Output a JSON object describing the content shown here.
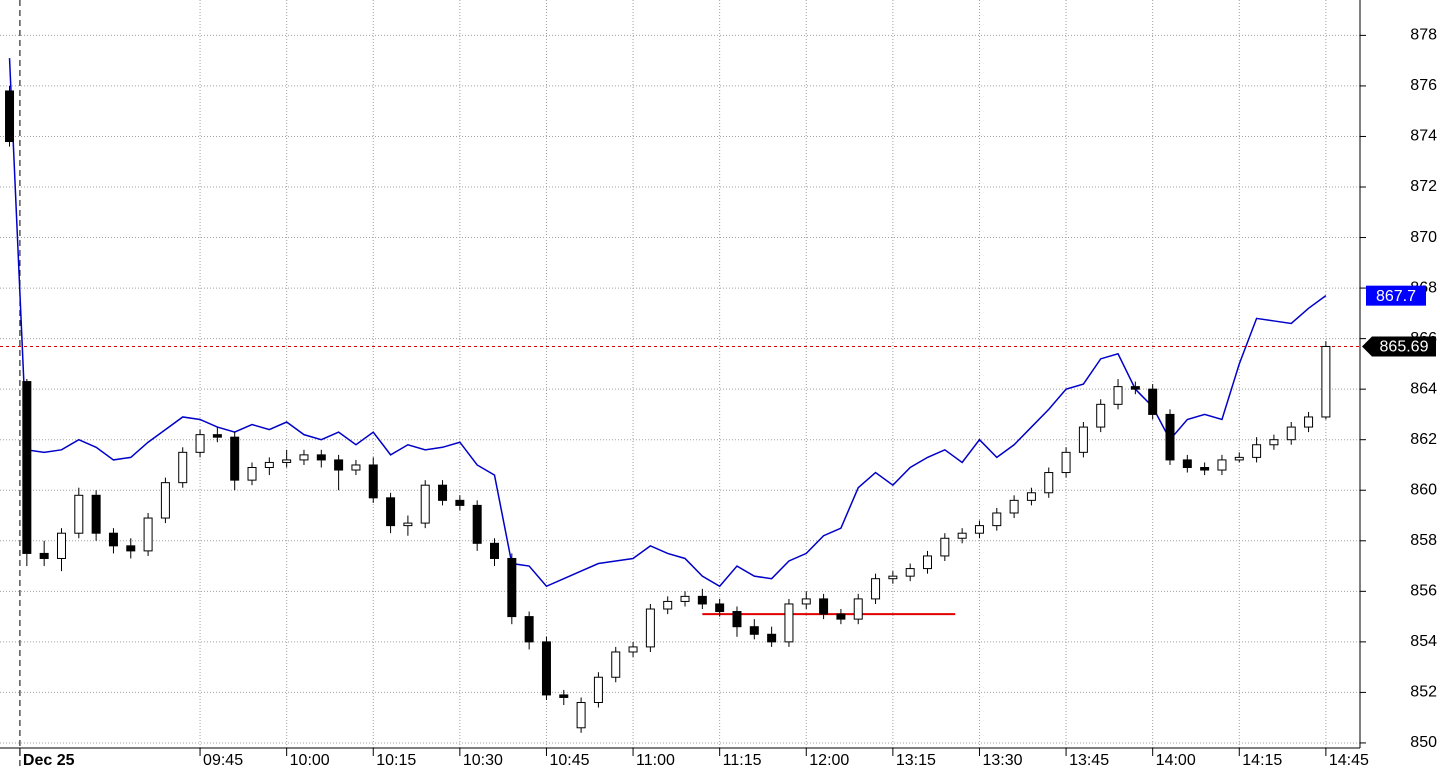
{
  "chart_data": {
    "type": "candlestick",
    "x": [
      -1,
      0,
      1,
      2,
      3,
      4,
      5,
      6,
      7,
      8,
      9,
      10,
      11,
      12,
      13,
      14,
      15,
      16,
      17,
      18,
      19,
      20,
      21,
      22,
      23,
      24,
      25,
      26,
      27,
      28,
      29,
      30,
      31,
      32,
      33,
      34,
      35,
      36,
      37,
      38,
      39,
      40,
      41,
      42,
      43,
      44,
      45,
      46,
      47,
      48,
      49,
      50,
      51,
      52,
      53,
      54,
      55,
      56,
      57,
      58,
      59,
      60,
      61,
      62,
      63,
      64,
      65,
      66,
      67,
      68,
      69,
      70,
      71,
      72,
      73,
      74,
      75
    ],
    "open": [
      875.8,
      864.3,
      857.5,
      857.3,
      858.3,
      859.8,
      858.3,
      857.8,
      857.6,
      858.9,
      860.3,
      861.5,
      862.2,
      862.1,
      860.4,
      860.9,
      861.1,
      861.2,
      861.4,
      861.2,
      860.8,
      861.0,
      859.7,
      858.6,
      858.7,
      860.2,
      859.6,
      859.4,
      857.9,
      857.3,
      855.0,
      854.0,
      851.9,
      850.6,
      851.6,
      852.6,
      853.6,
      853.8,
      855.3,
      855.6,
      855.8,
      855.5,
      855.2,
      854.6,
      854.3,
      854.0,
      855.5,
      855.7,
      855.1,
      854.9,
      855.7,
      856.5,
      856.6,
      856.9,
      857.4,
      858.1,
      858.3,
      858.6,
      859.1,
      859.6,
      859.9,
      860.7,
      861.5,
      862.5,
      863.4,
      864.1,
      864.0,
      863.0,
      861.2,
      860.9,
      860.8,
      861.2,
      861.3,
      861.8,
      862.0,
      862.5,
      862.9
    ],
    "high": [
      876.0,
      864.4,
      858.0,
      858.5,
      860.1,
      860.0,
      858.5,
      858.1,
      859.1,
      860.5,
      861.7,
      862.4,
      862.5,
      862.3,
      861.1,
      861.3,
      861.6,
      861.6,
      861.6,
      861.4,
      861.2,
      861.3,
      859.9,
      859.0,
      860.4,
      860.4,
      859.8,
      859.6,
      858.1,
      857.5,
      855.2,
      854.2,
      852.1,
      851.8,
      852.8,
      853.8,
      854.0,
      855.5,
      855.8,
      856.0,
      856.1,
      855.7,
      855.4,
      854.9,
      854.6,
      855.7,
      856.0,
      855.9,
      855.3,
      855.9,
      856.7,
      856.8,
      857.1,
      857.6,
      858.3,
      858.5,
      858.8,
      859.3,
      859.8,
      860.1,
      860.9,
      861.7,
      862.7,
      863.6,
      864.4,
      864.3,
      864.2,
      863.2,
      861.4,
      861.1,
      861.4,
      861.5,
      862.1,
      862.2,
      862.7,
      863.1,
      865.9
    ],
    "low": [
      873.6,
      857.0,
      857.0,
      856.8,
      858.1,
      858.0,
      857.5,
      857.3,
      857.4,
      858.7,
      860.1,
      861.3,
      861.9,
      860.0,
      860.2,
      860.6,
      860.9,
      861.0,
      860.9,
      860.0,
      860.6,
      859.5,
      858.3,
      858.2,
      858.5,
      859.4,
      859.2,
      857.6,
      857.0,
      854.7,
      853.7,
      851.7,
      851.5,
      850.4,
      851.4,
      852.4,
      853.4,
      853.6,
      855.1,
      855.4,
      855.3,
      855.0,
      854.2,
      854.1,
      853.8,
      853.8,
      855.3,
      854.9,
      854.7,
      854.7,
      855.5,
      856.3,
      856.4,
      856.7,
      857.2,
      857.9,
      858.1,
      858.4,
      858.9,
      859.4,
      859.7,
      860.5,
      861.3,
      862.3,
      863.2,
      863.8,
      862.8,
      861.0,
      860.7,
      860.6,
      860.6,
      861.1,
      861.1,
      861.6,
      861.8,
      862.3,
      862.8
    ],
    "close": [
      873.8,
      857.5,
      857.3,
      858.3,
      859.8,
      858.3,
      857.8,
      857.6,
      858.9,
      860.3,
      861.5,
      862.2,
      862.1,
      860.4,
      860.9,
      861.1,
      861.2,
      861.4,
      861.2,
      860.8,
      861.0,
      859.7,
      858.6,
      858.7,
      860.2,
      859.6,
      859.4,
      857.9,
      857.3,
      855.0,
      854.0,
      851.9,
      851.8,
      851.6,
      852.6,
      853.6,
      853.8,
      855.3,
      855.6,
      855.8,
      855.5,
      855.2,
      854.6,
      854.3,
      854.0,
      855.5,
      855.7,
      855.1,
      854.9,
      855.7,
      856.5,
      856.6,
      856.9,
      857.4,
      858.1,
      858.3,
      858.6,
      859.1,
      859.6,
      859.9,
      860.7,
      861.5,
      862.5,
      863.4,
      864.1,
      864.0,
      863.0,
      861.2,
      860.9,
      860.8,
      861.2,
      861.3,
      861.8,
      862.0,
      862.5,
      862.9,
      865.69
    ],
    "series": [
      {
        "color": "#0000c8",
        "values": [
          877.1,
          861.6,
          861.5,
          861.6,
          862.0,
          861.7,
          861.2,
          861.3,
          861.9,
          862.4,
          862.9,
          862.8,
          862.5,
          862.3,
          862.6,
          862.4,
          862.7,
          862.2,
          862.0,
          862.3,
          861.8,
          862.3,
          861.4,
          861.8,
          861.6,
          861.7,
          861.9,
          861.0,
          860.6,
          857.1,
          857.0,
          856.2,
          856.5,
          856.8,
          857.1,
          857.2,
          857.3,
          857.8,
          857.5,
          857.3,
          856.6,
          856.2,
          857.0,
          856.6,
          856.5,
          857.2,
          857.5,
          858.2,
          858.5,
          860.1,
          860.7,
          860.2,
          860.9,
          861.3,
          861.6,
          861.1,
          862.0,
          861.3,
          861.8,
          862.5,
          863.2,
          864.0,
          864.2,
          865.2,
          865.4,
          864.0,
          863.3,
          862.0,
          862.8,
          863.0,
          862.8,
          865.0,
          866.8,
          866.7,
          866.6,
          867.2,
          867.7
        ]
      }
    ],
    "support_line": {
      "value": 855.1,
      "x": [
        39,
        53.6
      ],
      "color": "#e00000"
    },
    "xlim": [
      -1.55,
      76.97
    ],
    "ylim": [
      849.8,
      879.4
    ],
    "xticks": [
      {
        "value": -0.4,
        "label": "Dec 25"
      },
      {
        "value": 10,
        "label": "09:45"
      },
      {
        "value": 15,
        "label": "10:00"
      },
      {
        "value": 20,
        "label": "10:15"
      },
      {
        "value": 25,
        "label": "10:30"
      },
      {
        "value": 30,
        "label": "10:45"
      },
      {
        "value": 35,
        "label": "11:00"
      },
      {
        "value": 40,
        "label": "11:15"
      },
      {
        "value": 45,
        "label": "12:00"
      },
      {
        "value": 50,
        "label": "13:15"
      },
      {
        "value": 55,
        "label": "13:30"
      },
      {
        "value": 60,
        "label": "13:45"
      },
      {
        "value": 65,
        "label": "14:00"
      },
      {
        "value": 70,
        "label": "14:15"
      },
      {
        "value": 75,
        "label": "14:45"
      }
    ],
    "yticks": [
      850,
      852,
      854,
      856,
      858,
      860,
      862,
      864,
      866,
      868,
      870,
      872,
      874,
      876,
      878
    ],
    "grid": true
  }
}
